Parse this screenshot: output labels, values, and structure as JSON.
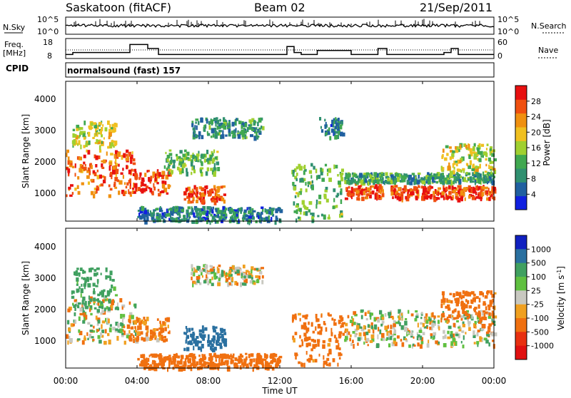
{
  "header": {
    "station": "Saskatoon (fitACF)",
    "beam": "Beam 02",
    "date": "21/Sep/2011"
  },
  "left_labels": {
    "nsky": "N.Sky",
    "freq_line1": "Freq.",
    "freq_line2": "[MHz]",
    "cpid": "CPID"
  },
  "right_labels": {
    "nsearch": "N.Search",
    "nave": "Nave"
  },
  "small_axes": {
    "nsky_ticks": [
      "10^5",
      "10^0"
    ],
    "freq_ticks": [
      "18",
      "8"
    ],
    "nave_ticks": [
      "60",
      "0"
    ]
  },
  "cpid_text": "normalsound (fast) 157",
  "xaxis": {
    "label": "Time UT",
    "ticks": [
      "00:00",
      "04:00",
      "08:00",
      "12:00",
      "16:00",
      "20:00",
      "00:00"
    ]
  },
  "power_panel": {
    "ylabel": "Slant Range [km]",
    "yticks": [
      "1000",
      "2000",
      "3000",
      "4000"
    ],
    "colorbar_label": "Power [dB]",
    "colorbar_ticks": [
      "4",
      "8",
      "12",
      "16",
      "20",
      "24",
      "28"
    ],
    "colors": [
      "#1020e0",
      "#2060a0",
      "#309070",
      "#40a850",
      "#a0d030",
      "#f0c020",
      "#f09010",
      "#f05010",
      "#e81010"
    ]
  },
  "velocity_panel": {
    "ylabel": "Slant Range [km]",
    "yticks": [
      "1000",
      "2000",
      "3000",
      "4000"
    ],
    "colorbar_label": "Velocity [m s",
    "colorbar_label_sup": "-1",
    "colorbar_label_end": "]",
    "colorbar_ticks": [
      "1000",
      "500",
      "100",
      "25",
      "-25",
      "-100",
      "-500",
      "-1000"
    ],
    "colors": [
      "#1020c0",
      "#2a70a0",
      "#40a060",
      "#60c040",
      "#c8c8c0",
      "#f0a020",
      "#f07010",
      "#e83010",
      "#e01010"
    ]
  },
  "chart_data": {
    "type": "heatmap",
    "title": "Saskatoon (fitACF)",
    "x_range_hours": [
      0,
      24
    ],
    "y_range_km": [
      180,
      4500
    ],
    "xlabel": "Time UT",
    "ylabel": "Slant Range [km]",
    "panels": [
      "Power [dB]",
      "Velocity [m s^-1]"
    ],
    "freq_mhz_range": [
      8,
      18
    ],
    "nave_range": [
      0,
      60
    ],
    "freq_segments": [
      [
        0,
        0.4,
        10
      ],
      [
        0.4,
        3.6,
        11
      ],
      [
        3.6,
        4.6,
        15
      ],
      [
        4.6,
        5.2,
        13
      ],
      [
        5.2,
        12.4,
        10
      ],
      [
        12.4,
        12.8,
        14
      ],
      [
        12.8,
        13.2,
        11
      ],
      [
        13.2,
        14.1,
        10
      ],
      [
        14.1,
        16.0,
        12
      ],
      [
        16.0,
        17.5,
        10
      ],
      [
        17.5,
        18.0,
        13
      ],
      [
        18.0,
        21.2,
        10
      ],
      [
        21.2,
        21.6,
        11
      ],
      [
        21.6,
        22.0,
        13
      ],
      [
        22.0,
        24.0,
        10
      ]
    ],
    "power_echoes": [
      {
        "t0": 0.0,
        "t1": 3.9,
        "r0": 1000,
        "r1": 2400,
        "p": 26
      },
      {
        "t0": 0.3,
        "t1": 2.8,
        "r0": 2500,
        "r1": 3300,
        "p": 18
      },
      {
        "t0": 3.5,
        "t1": 5.8,
        "r0": 1050,
        "r1": 1800,
        "p": 28
      },
      {
        "t0": 6.6,
        "t1": 8.9,
        "r0": 800,
        "r1": 1300,
        "p": 27
      },
      {
        "t0": 5.5,
        "t1": 8.5,
        "r0": 1700,
        "r1": 2400,
        "p": 14
      },
      {
        "t0": 7.0,
        "t1": 11.0,
        "r0": 2800,
        "r1": 3400,
        "p": 11
      },
      {
        "t0": 4.0,
        "t1": 12.0,
        "r0": 200,
        "r1": 650,
        "p": 9
      },
      {
        "t0": 12.6,
        "t1": 15.5,
        "r0": 200,
        "r1": 2000,
        "p": 14
      },
      {
        "t0": 14.2,
        "t1": 15.5,
        "r0": 2800,
        "r1": 3400,
        "p": 10
      },
      {
        "t0": 15.6,
        "t1": 17.8,
        "r0": 900,
        "r1": 1400,
        "p": 27
      },
      {
        "t0": 18.2,
        "t1": 24.0,
        "r0": 900,
        "r1": 1300,
        "p": 28
      },
      {
        "t0": 15.6,
        "t1": 24.0,
        "r0": 1400,
        "r1": 1700,
        "p": 12
      },
      {
        "t0": 21.0,
        "t1": 24.0,
        "r0": 1700,
        "r1": 2600,
        "p": 18
      }
    ],
    "velocity_echoes": [
      {
        "t0": 0.0,
        "t1": 3.9,
        "r0": 1000,
        "r1": 2400,
        "v": 0
      },
      {
        "t0": 0.3,
        "t1": 2.8,
        "r0": 2000,
        "r1": 3300,
        "v": 150
      },
      {
        "t0": 3.5,
        "t1": 5.8,
        "r0": 1050,
        "r1": 1800,
        "v": -120
      },
      {
        "t0": 6.6,
        "t1": 8.9,
        "r0": 800,
        "r1": 1500,
        "v": 400
      },
      {
        "t0": 7.0,
        "t1": 11.0,
        "r0": 2800,
        "r1": 3400,
        "v": 0
      },
      {
        "t0": 4.0,
        "t1": 12.0,
        "r0": 200,
        "r1": 650,
        "v": -200
      },
      {
        "t0": 12.6,
        "t1": 15.5,
        "r0": 300,
        "r1": 1900,
        "v": -150
      },
      {
        "t0": 15.6,
        "t1": 24.0,
        "r0": 900,
        "r1": 2000,
        "v": 0
      },
      {
        "t0": 21.0,
        "t1": 24.0,
        "r0": 1700,
        "r1": 2600,
        "v": -150
      }
    ]
  }
}
